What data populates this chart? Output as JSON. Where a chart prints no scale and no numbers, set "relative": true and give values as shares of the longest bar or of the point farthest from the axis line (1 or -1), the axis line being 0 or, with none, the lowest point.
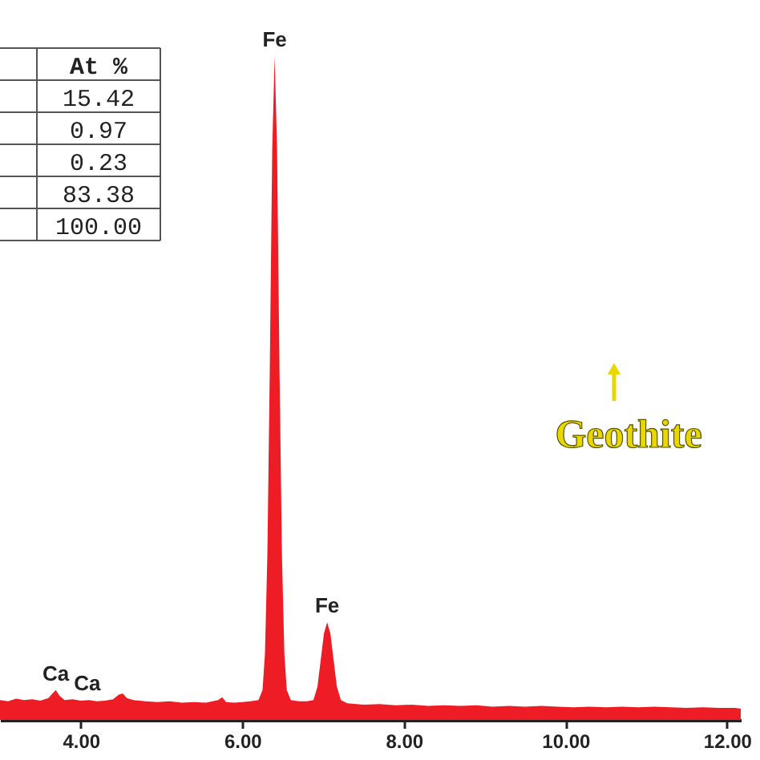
{
  "chart_data": {
    "type": "area",
    "relative": true,
    "xlim": [
      3.0,
      12.17
    ],
    "xticks": [
      {
        "value": 4,
        "label": "4.00"
      },
      {
        "value": 6,
        "label": "6.00"
      },
      {
        "value": 8,
        "label": "8.00"
      },
      {
        "value": 10,
        "label": "10.00"
      },
      {
        "value": 12,
        "label": "12.00"
      }
    ],
    "x": [
      3.0,
      3.1,
      3.2,
      3.3,
      3.4,
      3.5,
      3.6,
      3.65,
      3.69,
      3.74,
      3.8,
      3.9,
      4.0,
      4.1,
      4.2,
      4.3,
      4.4,
      4.47,
      4.52,
      4.57,
      4.65,
      4.8,
      4.95,
      5.1,
      5.25,
      5.4,
      5.55,
      5.7,
      5.75,
      5.8,
      5.9,
      6.0,
      6.1,
      6.2,
      6.25,
      6.28,
      6.31,
      6.34,
      6.37,
      6.4,
      6.43,
      6.46,
      6.49,
      6.52,
      6.55,
      6.6,
      6.7,
      6.8,
      6.88,
      6.93,
      6.97,
      7.01,
      7.05,
      7.09,
      7.13,
      7.17,
      7.22,
      7.3,
      7.5,
      7.7,
      7.9,
      8.1,
      8.3,
      8.5,
      8.7,
      8.9,
      9.1,
      9.3,
      9.5,
      9.7,
      9.9,
      10.1,
      10.3,
      10.5,
      10.7,
      10.9,
      11.1,
      11.3,
      11.5,
      11.7,
      11.9,
      12.1,
      12.17
    ],
    "series": [
      {
        "color": "#ee1c25",
        "values": [
          0.03,
          0.028,
          0.032,
          0.03,
          0.031,
          0.029,
          0.033,
          0.04,
          0.045,
          0.036,
          0.03,
          0.031,
          0.029,
          0.03,
          0.028,
          0.029,
          0.031,
          0.038,
          0.04,
          0.033,
          0.03,
          0.028,
          0.027,
          0.028,
          0.026,
          0.027,
          0.026,
          0.03,
          0.034,
          0.027,
          0.026,
          0.027,
          0.028,
          0.03,
          0.045,
          0.1,
          0.25,
          0.53,
          0.86,
          1.0,
          0.86,
          0.53,
          0.25,
          0.1,
          0.045,
          0.03,
          0.028,
          0.028,
          0.03,
          0.05,
          0.09,
          0.13,
          0.147,
          0.13,
          0.09,
          0.05,
          0.03,
          0.025,
          0.023,
          0.024,
          0.022,
          0.023,
          0.021,
          0.022,
          0.021,
          0.022,
          0.02,
          0.021,
          0.02,
          0.021,
          0.02,
          0.019,
          0.02,
          0.019,
          0.02,
          0.019,
          0.02,
          0.019,
          0.018,
          0.019,
          0.018,
          0.018,
          0.017
        ]
      }
    ],
    "annotations": [
      "At %",
      "15.42",
      "0.97",
      "0.23",
      "83.38",
      "100.00",
      "Geothite",
      {
        "text": "Fe",
        "x": 6.4,
        "y": 1.0
      },
      {
        "text": "Fe",
        "x": 7.05,
        "y": 0.147
      },
      {
        "text": "Ca",
        "x": 3.69,
        "y": 0.045
      },
      {
        "text": "Ca",
        "x": 4.08,
        "y": 0.03
      }
    ]
  }
}
